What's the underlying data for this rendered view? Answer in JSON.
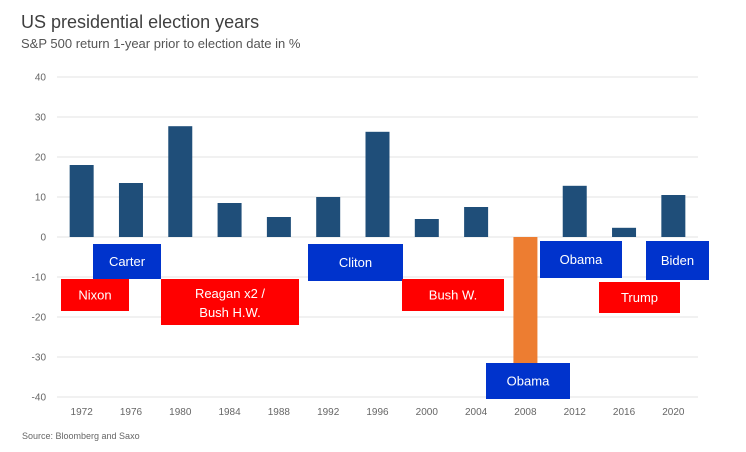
{
  "chart_data": {
    "type": "bar",
    "title": "US presidential election years",
    "subtitle": "S&P 500 return 1-year prior to election date in %",
    "source": "Source: Bloomberg and Saxo",
    "categories": [
      "1972",
      "1976",
      "1980",
      "1984",
      "1988",
      "1992",
      "1996",
      "2000",
      "2004",
      "2008",
      "2012",
      "2016",
      "2020"
    ],
    "values": [
      18,
      13.5,
      27.7,
      8.5,
      5,
      10,
      26.3,
      4.5,
      7.5,
      -38.5,
      12.8,
      2.3,
      10.5
    ],
    "ylim": [
      -40,
      40
    ],
    "yticks": [
      40,
      30,
      20,
      10,
      0,
      -10,
      -20,
      -30,
      -40
    ],
    "grid": true,
    "colors": {
      "bar": "#1f4e79",
      "highlight": "#ed7d31",
      "democrat": "#0033cc",
      "republican": "#ff0000"
    },
    "highlight_index": 9,
    "president_labels": [
      {
        "name": "Nixon",
        "party": "republican"
      },
      {
        "name": "Carter",
        "party": "democrat"
      },
      {
        "name": "Reagan x2 /",
        "line2": "Bush H.W.",
        "party": "republican"
      },
      {
        "name": "Cliton",
        "party": "democrat"
      },
      {
        "name": "Bush W.",
        "party": "republican"
      },
      {
        "name": "Obama",
        "party": "democrat"
      },
      {
        "name": "Obama",
        "party": "democrat"
      },
      {
        "name": "Trump",
        "party": "republican"
      },
      {
        "name": "Biden",
        "party": "democrat"
      }
    ]
  }
}
